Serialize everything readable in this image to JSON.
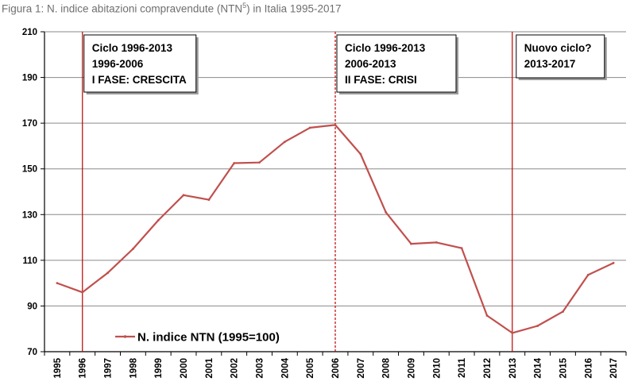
{
  "title": {
    "prefix": "Figura 1: N. indice abitazioni compravendute (NTN",
    "sup": "5",
    "suffix": ") in Italia  1995-2017"
  },
  "chart_data": {
    "type": "line",
    "categories": [
      "1995",
      "1996",
      "1997",
      "1998",
      "1999",
      "2000",
      "2001",
      "2002",
      "2003",
      "2004",
      "2005",
      "2006",
      "2007",
      "2008",
      "2009",
      "2010",
      "2011",
      "2012",
      "2013",
      "2014",
      "2015",
      "2016",
      "2017"
    ],
    "series": [
      {
        "name": "N. indice NTN (1995=100)",
        "color": "#c0504d",
        "values": [
          100,
          96,
          104.5,
          115,
          127.5,
          138.5,
          136.5,
          152.5,
          152.8,
          161.8,
          168,
          169.2,
          156.5,
          131,
          117.2,
          117.8,
          115.3,
          85.8,
          78.2,
          81.3,
          87.5,
          103.6,
          108.8
        ]
      }
    ],
    "ylim": [
      70,
      210
    ],
    "yticks": [
      "70",
      "90",
      "110",
      "130",
      "150",
      "170",
      "190",
      "210"
    ],
    "xlabel": "",
    "ylabel": "",
    "grid": "horizontal",
    "legend_position": "bottom-left",
    "vertical_markers": [
      {
        "category": "1996",
        "style": "solid",
        "color": "#c00000"
      },
      {
        "category": "2006",
        "style": "dashed",
        "color": "#c00000"
      },
      {
        "category": "2013",
        "style": "solid",
        "color": "#c00000"
      }
    ],
    "annotations": [
      {
        "anchor": "1996",
        "lines": [
          "Ciclo 1996-2013",
          "1996-2006",
          "I FASE: CRESCITA"
        ]
      },
      {
        "anchor": "2006",
        "lines": [
          "Ciclo 1996-2013",
          "2006-2013",
          "II FASE: CRISI"
        ]
      },
      {
        "anchor": "2013",
        "lines": [
          "Nuovo ciclo?",
          "2013-2017"
        ]
      }
    ]
  }
}
